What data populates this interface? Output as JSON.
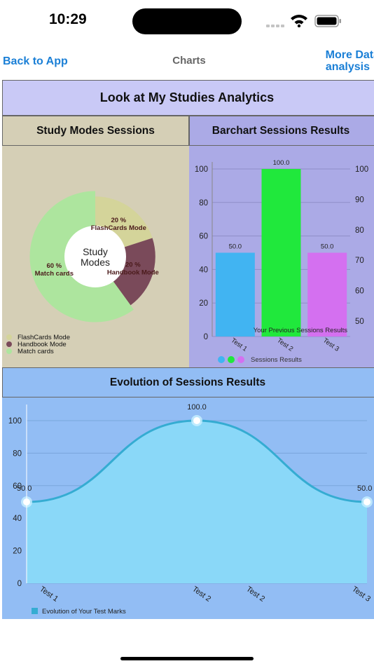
{
  "status_bar": {
    "time": "10:29"
  },
  "nav": {
    "back_label": "Back to App",
    "title": "Charts",
    "more_label_line1": "More Data",
    "more_label_line2": "analysis"
  },
  "header": {
    "title": "Look at My Studies Analytics"
  },
  "pie_panel": {
    "title": "Study Modes Sessions",
    "center_line1": "Study",
    "center_line2": "Modes"
  },
  "bar_panel": {
    "title": "Barchart Sessions Results"
  },
  "evo_panel": {
    "title": "Evolution of Sessions Results"
  },
  "colors": {
    "pie_flashcards": "#d4d49a",
    "pie_handbook": "#7a4a5a",
    "pie_match": "#ade59e",
    "bar_test1": "#41b4f2",
    "bar_test2": "#20e83c",
    "bar_test3": "#d470f0",
    "line": "#35acd2",
    "area": "#8ad8f8"
  },
  "chart_data": [
    {
      "type": "pie",
      "title": "",
      "categories": [
        "FlashCards Mode",
        "Handbook Mode",
        "Match cards"
      ],
      "values": [
        20,
        20,
        60
      ],
      "slice_labels": [
        {
          "percent": "20 %",
          "name": "FlashCards Mode"
        },
        {
          "percent": "20 %",
          "name": "Handbook Mode"
        },
        {
          "percent": "60 %",
          "name": "Match cards"
        }
      ],
      "legend": [
        "FlashCards Mode",
        "Handbook Mode",
        "Match cards"
      ],
      "legend_position": "bottom-left"
    },
    {
      "type": "bar",
      "categories": [
        "Test 1",
        "Test 2",
        "Test 3"
      ],
      "values": [
        50,
        100,
        50
      ],
      "value_labels": [
        "50.0",
        "100.0",
        "50.0"
      ],
      "ylim": [
        0,
        100
      ],
      "y_ticks": [
        "0",
        "20",
        "40",
        "60",
        "80",
        "100"
      ],
      "y2_ticks": [
        "50",
        "60",
        "70",
        "80",
        "90",
        "100"
      ],
      "description": "Your Previous Sessions Results",
      "legend": [
        "Sessions Results"
      ],
      "grid": true
    },
    {
      "type": "line",
      "categories": [
        "Test 1",
        "Test 2",
        "Test 2",
        "Test 3"
      ],
      "x": [
        "Test 1",
        "Test 2",
        "Test 3"
      ],
      "values": [
        50,
        100,
        50
      ],
      "value_labels": [
        "50.0",
        "100.0",
        "50.0"
      ],
      "ylim": [
        0,
        100
      ],
      "y_ticks": [
        "0",
        "20",
        "40",
        "60",
        "80",
        "100"
      ],
      "legend": [
        "Evolution of Your Test Marks"
      ],
      "filled": true,
      "grid": true
    }
  ]
}
